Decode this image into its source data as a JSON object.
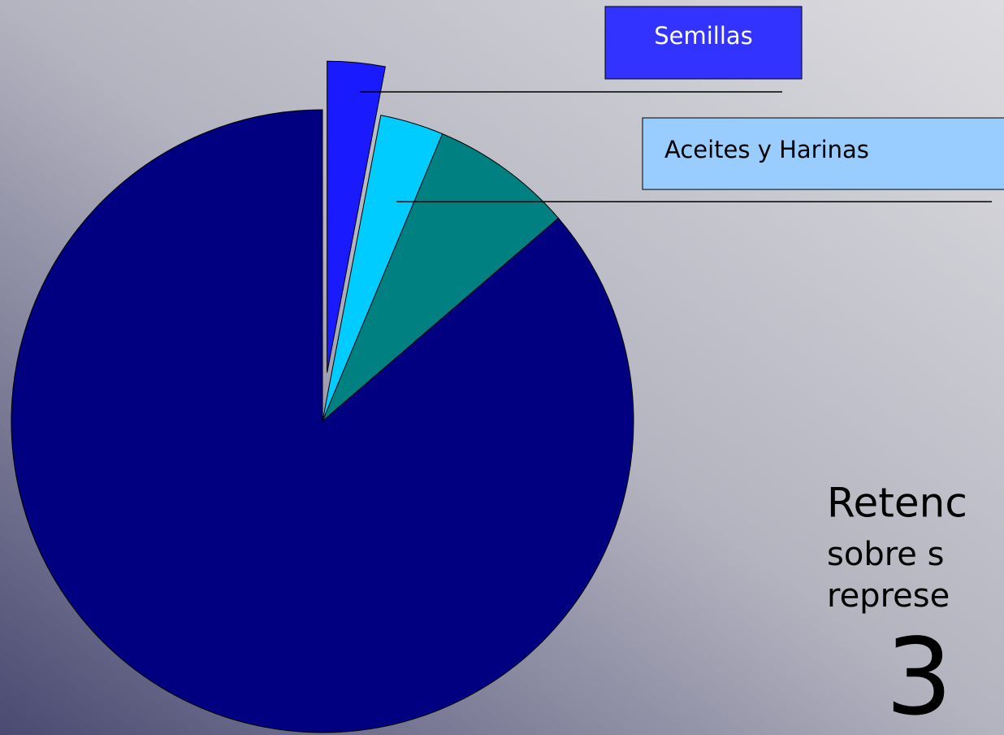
{
  "chart_data": {
    "type": "pie",
    "categories": [
      "Semillas",
      "Aceites y Harinas",
      null,
      null
    ],
    "values": [
      3,
      3.3,
      7.4,
      86.3
    ],
    "colors": [
      "#1a1aff",
      "#00ccff",
      "#008080",
      "#000080"
    ],
    "explode": [
      true,
      false,
      false,
      false
    ],
    "annotations": [
      "Retenc",
      "sobre s",
      "represe",
      "3"
    ]
  }
}
